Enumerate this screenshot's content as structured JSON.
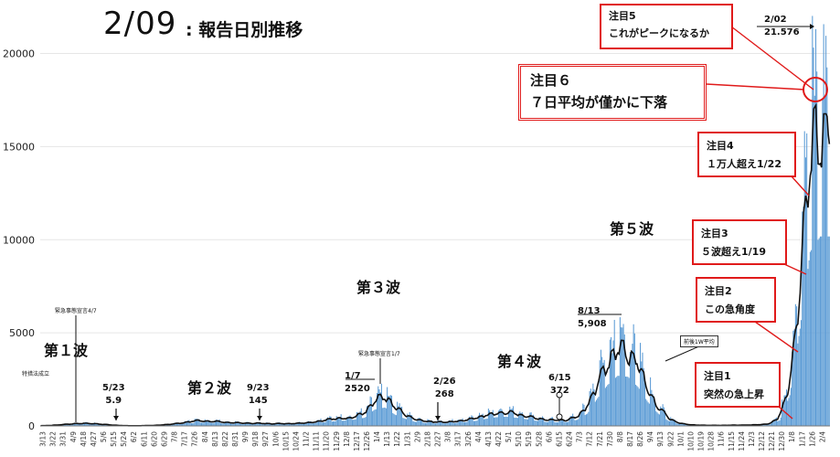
{
  "title": {
    "date": "2/09",
    "subtitle": ": 報告日別推移"
  },
  "chart_data": {
    "type": "bar",
    "ylim": [
      0,
      21500
    ],
    "yticks": [
      0,
      5000,
      10000,
      15000,
      20000
    ],
    "xtick_labels": [
      "3/13",
      "3/22",
      "3/31",
      "4/9",
      "4/18",
      "4/27",
      "5/6",
      "5/15",
      "5/24",
      "6/2",
      "6/11",
      "6/20",
      "6/29",
      "7/8",
      "7/17",
      "7/26",
      "8/4",
      "8/13",
      "8/22",
      "8/31",
      "9/9",
      "9/18",
      "9/27",
      "10/6",
      "10/15",
      "10/24",
      "11/2",
      "11/11",
      "11/20",
      "11/29",
      "12/8",
      "12/17",
      "12/26",
      "1/4",
      "1/13",
      "1/22",
      "1/31",
      "2/9",
      "2/18",
      "2/27",
      "3/8",
      "3/17",
      "3/26",
      "4/4",
      "4/13",
      "4/22",
      "5/1",
      "5/10",
      "5/19",
      "5/28",
      "6/6",
      "6/15",
      "6/24",
      "7/3",
      "7/12",
      "7/21",
      "7/30",
      "8/8",
      "8/17",
      "8/26",
      "9/4",
      "9/13",
      "9/22",
      "10/1",
      "10/10",
      "10/19",
      "10/28",
      "11/6",
      "11/15",
      "11/24",
      "12/3",
      "12/12",
      "12/21",
      "12/30",
      "1/8",
      "1/17",
      "1/26",
      "2/4"
    ],
    "weekly_values": [
      10,
      30,
      80,
      130,
      170,
      150,
      110,
      60,
      20,
      10,
      15,
      30,
      60,
      120,
      200,
      280,
      330,
      300,
      250,
      200,
      180,
      170,
      160,
      150,
      150,
      160,
      200,
      260,
      360,
      450,
      520,
      620,
      800,
      1600,
      1800,
      1100,
      700,
      400,
      300,
      250,
      250,
      300,
      380,
      500,
      700,
      850,
      900,
      800,
      650,
      500,
      380,
      350,
      380,
      600,
      1200,
      2700,
      4000,
      4900,
      4800,
      3800,
      2300,
      1200,
      500,
      200,
      80,
      50,
      40,
      35,
      40,
      50,
      60,
      80,
      150,
      550,
      3000,
      9500,
      17000,
      18500
    ],
    "series": [
      {
        "type": "bar",
        "color": "#5b9bd5"
      },
      {
        "type": "line",
        "color": "#111111"
      }
    ],
    "peak": {
      "date": "2/02",
      "value": "21.576"
    }
  },
  "wave_labels": [
    {
      "text": "第１波"
    },
    {
      "text": "第２波"
    },
    {
      "text": "第３波"
    },
    {
      "text": "第４波"
    },
    {
      "text": "第５波"
    }
  ],
  "annotations": {
    "tokuso": "特措法成立",
    "emergency1": "緊急事態宣言4/7",
    "a_0523": [
      "5/23",
      "5.9"
    ],
    "a_0923": [
      "9/23",
      "145"
    ],
    "emergency2": "緊急事態宣言1/7",
    "a_0107": [
      "1/7",
      "2520"
    ],
    "a_0226": [
      "2/26",
      "268"
    ],
    "a_0615": [
      "6/15",
      "372"
    ],
    "a_0813": [
      "8/13",
      "5,908"
    ],
    "legend": "前後1W平均"
  },
  "notes": [
    {
      "title": "注目5",
      "body": "これがピークになるか"
    },
    {
      "title": "注目６",
      "body": "７日平均が僅かに下落"
    },
    {
      "title": "注目4",
      "body": "１万人超え1/22"
    },
    {
      "title": "注目3",
      "body": "５波超え1/19"
    },
    {
      "title": "注目2",
      "body": "この急角度"
    },
    {
      "title": "注目1",
      "body": "突然の急上昇"
    }
  ],
  "colors": {
    "accent": "#e01a1a",
    "bar": "#5b9bd5",
    "line": "#111111"
  }
}
